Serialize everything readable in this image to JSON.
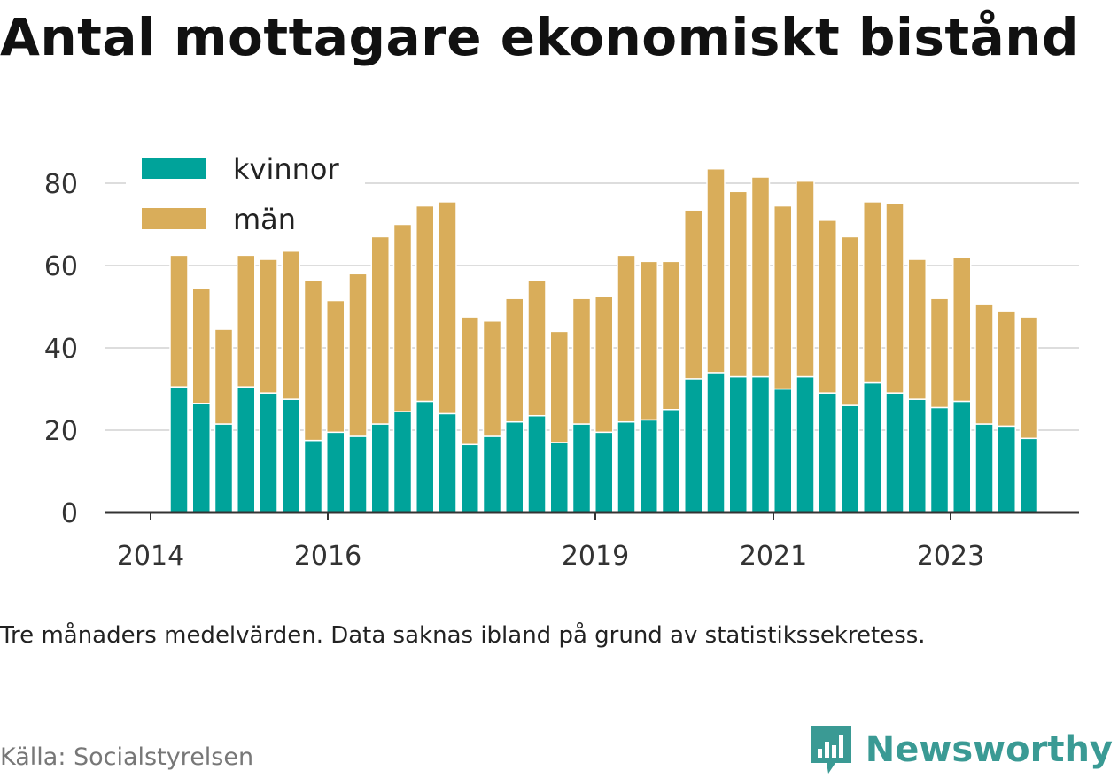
{
  "title": "Antal mottagare ekonomiskt bistånd",
  "note": "Tre månaders medelvärden. Data saknas ibland på grund av statistikssekretess.",
  "source": "Källa: Socialstyrelsen",
  "brand": {
    "name": "Newsworthy",
    "color": "#3a9a94",
    "icon": "bar-chart-logo-icon"
  },
  "colors": {
    "kvinnor": "#00a39a",
    "man": "#d9ad5a",
    "axis": "#333333",
    "grid": "#dddddd"
  },
  "chart_data": {
    "type": "bar",
    "stacked": true,
    "x_tick_labels": [
      "2014",
      "2016",
      "2019",
      "2021",
      "2023"
    ],
    "y_ticks": [
      0,
      20,
      40,
      60,
      80
    ],
    "ylim": [
      0,
      85
    ],
    "grid": true,
    "legend_position": "top-left",
    "series": [
      {
        "name": "kvinnor",
        "values": [
          30.5,
          26.5,
          21.5,
          30.5,
          29,
          27.5,
          17.5,
          19.5,
          18.5,
          21.5,
          24.5,
          27,
          24,
          16.5,
          18.5,
          22,
          23.5,
          17,
          21.5,
          19.5,
          22,
          22.5,
          25,
          32.5,
          34,
          33,
          33,
          30,
          33,
          29,
          26,
          31.5,
          29,
          27.5,
          25.5,
          27,
          21.5,
          21,
          18
        ]
      },
      {
        "name": "män",
        "values": [
          32,
          28,
          23,
          32,
          32.5,
          36,
          39,
          32,
          39.5,
          45.5,
          45.5,
          47.5,
          51.5,
          31,
          28,
          30,
          33,
          27,
          30.5,
          33,
          40.5,
          38.5,
          36,
          41,
          49.5,
          45,
          48.5,
          44.5,
          47.5,
          42,
          41,
          44,
          46,
          34,
          26.5,
          35,
          29,
          28,
          29.5
        ]
      }
    ]
  }
}
